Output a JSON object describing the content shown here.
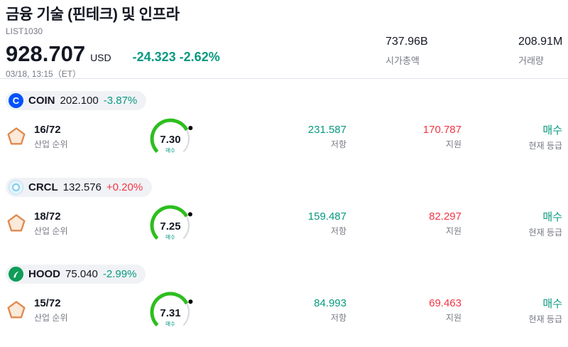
{
  "colors": {
    "up": "#f23645",
    "down": "#089981",
    "resistance": "#089981",
    "support": "#f23645",
    "buy": "#089981",
    "gauge_fill": "#2dbe1e",
    "muted": "#787b86"
  },
  "header": {
    "title": "금융 기술 (핀테크) 및 인프라",
    "list_id": "LIST1030",
    "price": "928.707",
    "currency": "USD",
    "change": "-24.323 -2.62%",
    "change_color": "#089981",
    "datetime": "03/18, 13:15（ET）",
    "market_cap": {
      "value": "737.96B",
      "label": "시가총액"
    },
    "volume": {
      "value": "208.91M",
      "label": "거래량"
    }
  },
  "rows": [
    {
      "ticker": "COIN",
      "price": "202.100",
      "change": "-3.87%",
      "change_color": "#089981",
      "logo_text": "C",
      "logo_color": "#0052ff",
      "rank": "16/72",
      "rank_label": "산업 순위",
      "score": 7.3,
      "score_display": "7.30",
      "gauge_label": "매수",
      "resistance": "231.587",
      "resistance_label": "저항",
      "support": "170.787",
      "support_label": "지원",
      "rating": "매수",
      "rating_label": "현재 등급"
    },
    {
      "ticker": "CRCL",
      "price": "132.576",
      "change": "+0.20%",
      "change_color": "#f23645",
      "logo_text": "",
      "logo_color": "#e4f4fc",
      "rank": "18/72",
      "rank_label": "산업 순위",
      "score": 7.25,
      "score_display": "7.25",
      "gauge_label": "매수",
      "resistance": "159.487",
      "resistance_label": "저항",
      "support": "82.297",
      "support_label": "지원",
      "rating": "매수",
      "rating_label": "현재 등급"
    },
    {
      "ticker": "HOOD",
      "price": "75.040",
      "change": "-2.99%",
      "change_color": "#089981",
      "logo_text": "",
      "logo_color": "#0f9d58",
      "rank": "15/72",
      "rank_label": "산업 순위",
      "score": 7.31,
      "score_display": "7.31",
      "gauge_label": "매수",
      "resistance": "84.993",
      "resistance_label": "저항",
      "support": "69.463",
      "support_label": "지원",
      "rating": "매수",
      "rating_label": "현재 등급"
    }
  ]
}
